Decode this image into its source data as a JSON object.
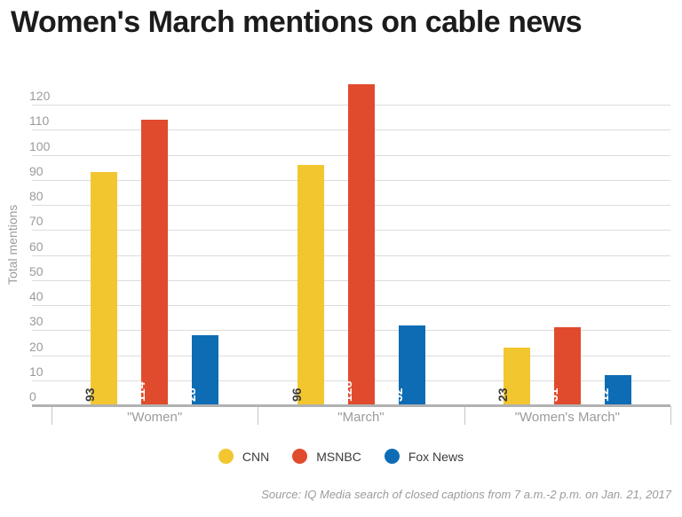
{
  "page": {
    "title": "Women's March mentions on cable news",
    "source": "Source: IQ Media search of closed captions from 7 a.m.-2 p.m. on Jan. 21, 2017"
  },
  "chart_data": {
    "type": "bar",
    "title": "Women's March mentions on cable news",
    "xlabel": "",
    "ylabel": "Total mentions",
    "categories": [
      "\"Women\"",
      "\"March\"",
      "\"Women's March\""
    ],
    "series": [
      {
        "name": "CNN",
        "color": "#f2c62f",
        "value_label_color": "#3b3b3b",
        "values": [
          93,
          96,
          23
        ]
      },
      {
        "name": "MSNBC",
        "color": "#e04b2e",
        "value_label_color": "#ffffff",
        "values": [
          114,
          128,
          31
        ]
      },
      {
        "name": "Fox News",
        "color": "#0e6cb5",
        "value_label_color": "#ffffff",
        "values": [
          28,
          32,
          12
        ]
      }
    ],
    "ylim": [
      0,
      130
    ],
    "yticks": [
      0,
      10,
      20,
      30,
      40,
      50,
      60,
      70,
      80,
      90,
      100,
      110,
      120
    ],
    "grid": true,
    "legend_position": "bottom",
    "value_label_style": "rotated-90-inside-bar-bottom",
    "colors": {
      "grid": "#dcdcdc",
      "axis": "#b1b1b1",
      "tick_text": "#9b9b9b",
      "title_text": "#1c1c1c",
      "legend_text": "#3b3b3b"
    }
  }
}
